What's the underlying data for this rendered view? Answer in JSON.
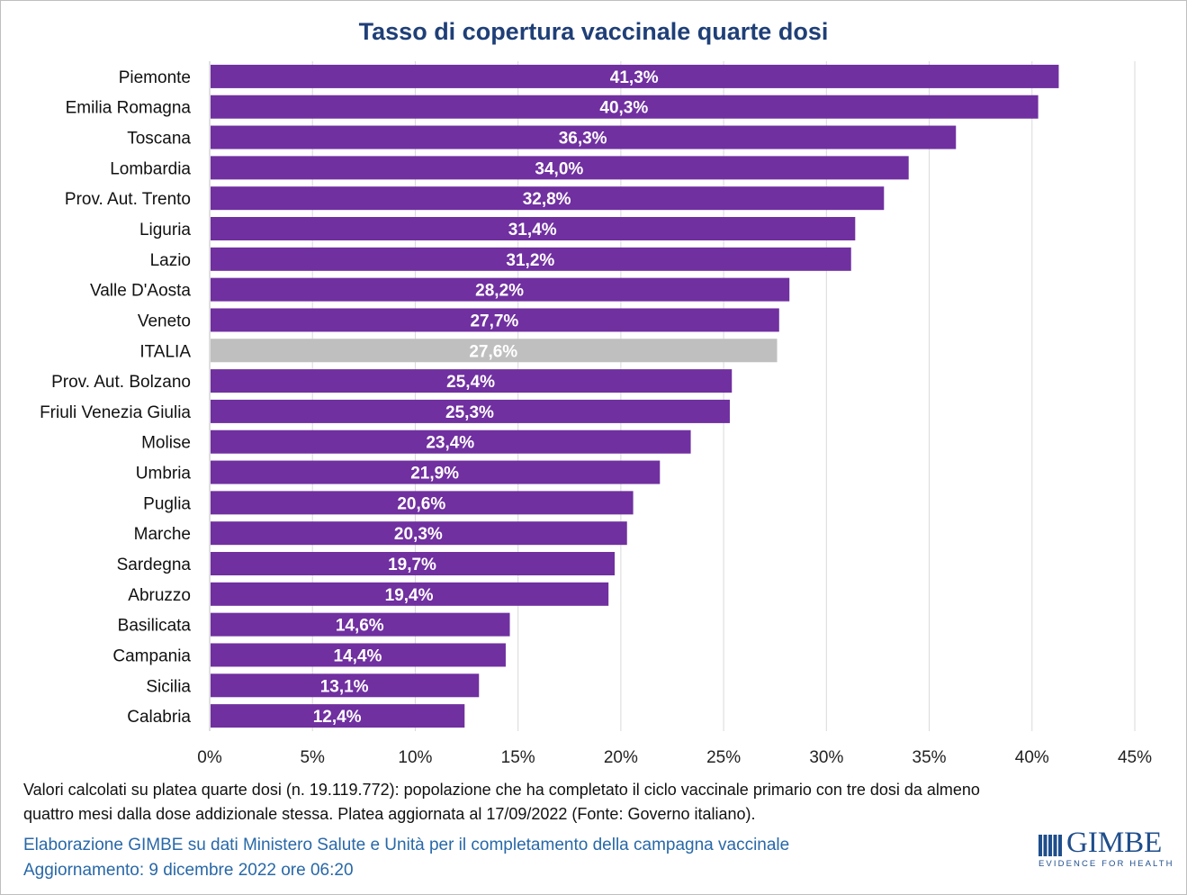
{
  "chart_data": {
    "type": "bar",
    "orientation": "horizontal",
    "title": "Tasso di copertura vaccinale quarte dosi",
    "categories": [
      "Piemonte",
      "Emilia Romagna",
      "Toscana",
      "Lombardia",
      "Prov. Aut. Trento",
      "Liguria",
      "Lazio",
      "Valle D'Aosta",
      "Veneto",
      "ITALIA",
      "Prov. Aut. Bolzano",
      "Friuli Venezia Giulia",
      "Molise",
      "Umbria",
      "Puglia",
      "Marche",
      "Sardegna",
      "Abruzzo",
      "Basilicata",
      "Campania",
      "Sicilia",
      "Calabria"
    ],
    "values": [
      41.3,
      40.3,
      36.3,
      34.0,
      32.8,
      31.4,
      31.2,
      28.2,
      27.7,
      27.6,
      25.4,
      25.3,
      23.4,
      21.9,
      20.6,
      20.3,
      19.7,
      19.4,
      14.6,
      14.4,
      13.1,
      12.4
    ],
    "data_labels": [
      "41,3%",
      "40,3%",
      "36,3%",
      "34,0%",
      "32,8%",
      "31,4%",
      "31,2%",
      "28,2%",
      "27,7%",
      "27,6%",
      "25,4%",
      "25,3%",
      "23,4%",
      "21,9%",
      "20,6%",
      "20,3%",
      "19,7%",
      "19,4%",
      "14,6%",
      "14,4%",
      "13,1%",
      "12,4%"
    ],
    "xlim": [
      0,
      45
    ],
    "xticks": [
      0,
      5,
      10,
      15,
      20,
      25,
      30,
      35,
      40,
      45
    ],
    "xtick_labels": [
      "0%",
      "5%",
      "10%",
      "15%",
      "20%",
      "25%",
      "30%",
      "35%",
      "40%",
      "45%"
    ],
    "grid": true,
    "highlight_category": "ITALIA",
    "colors": {
      "bar": "#7030a0",
      "highlight": "#bfbfbf",
      "grid": "#d9d9d9",
      "title": "#1f3f77"
    }
  },
  "notes": {
    "line1": "Valori calcolati su platea quarte dosi (n. 19.119.772): popolazione che ha completato il ciclo vaccinale primario con tre dosi da almeno",
    "line2": "quattro mesi dalla dose addizionale stessa. Platea aggiornata al 17/09/2022 (Fonte: Governo italiano)."
  },
  "credits": {
    "line1": "Elaborazione GIMBE su dati Ministero Salute e Unità per il completamento della campagna vaccinale",
    "line2": "Aggiornamento: 9 dicembre 2022 ore 06:20"
  },
  "logo": {
    "name": "GIMBE",
    "tagline": "EVIDENCE FOR HEALTH"
  }
}
